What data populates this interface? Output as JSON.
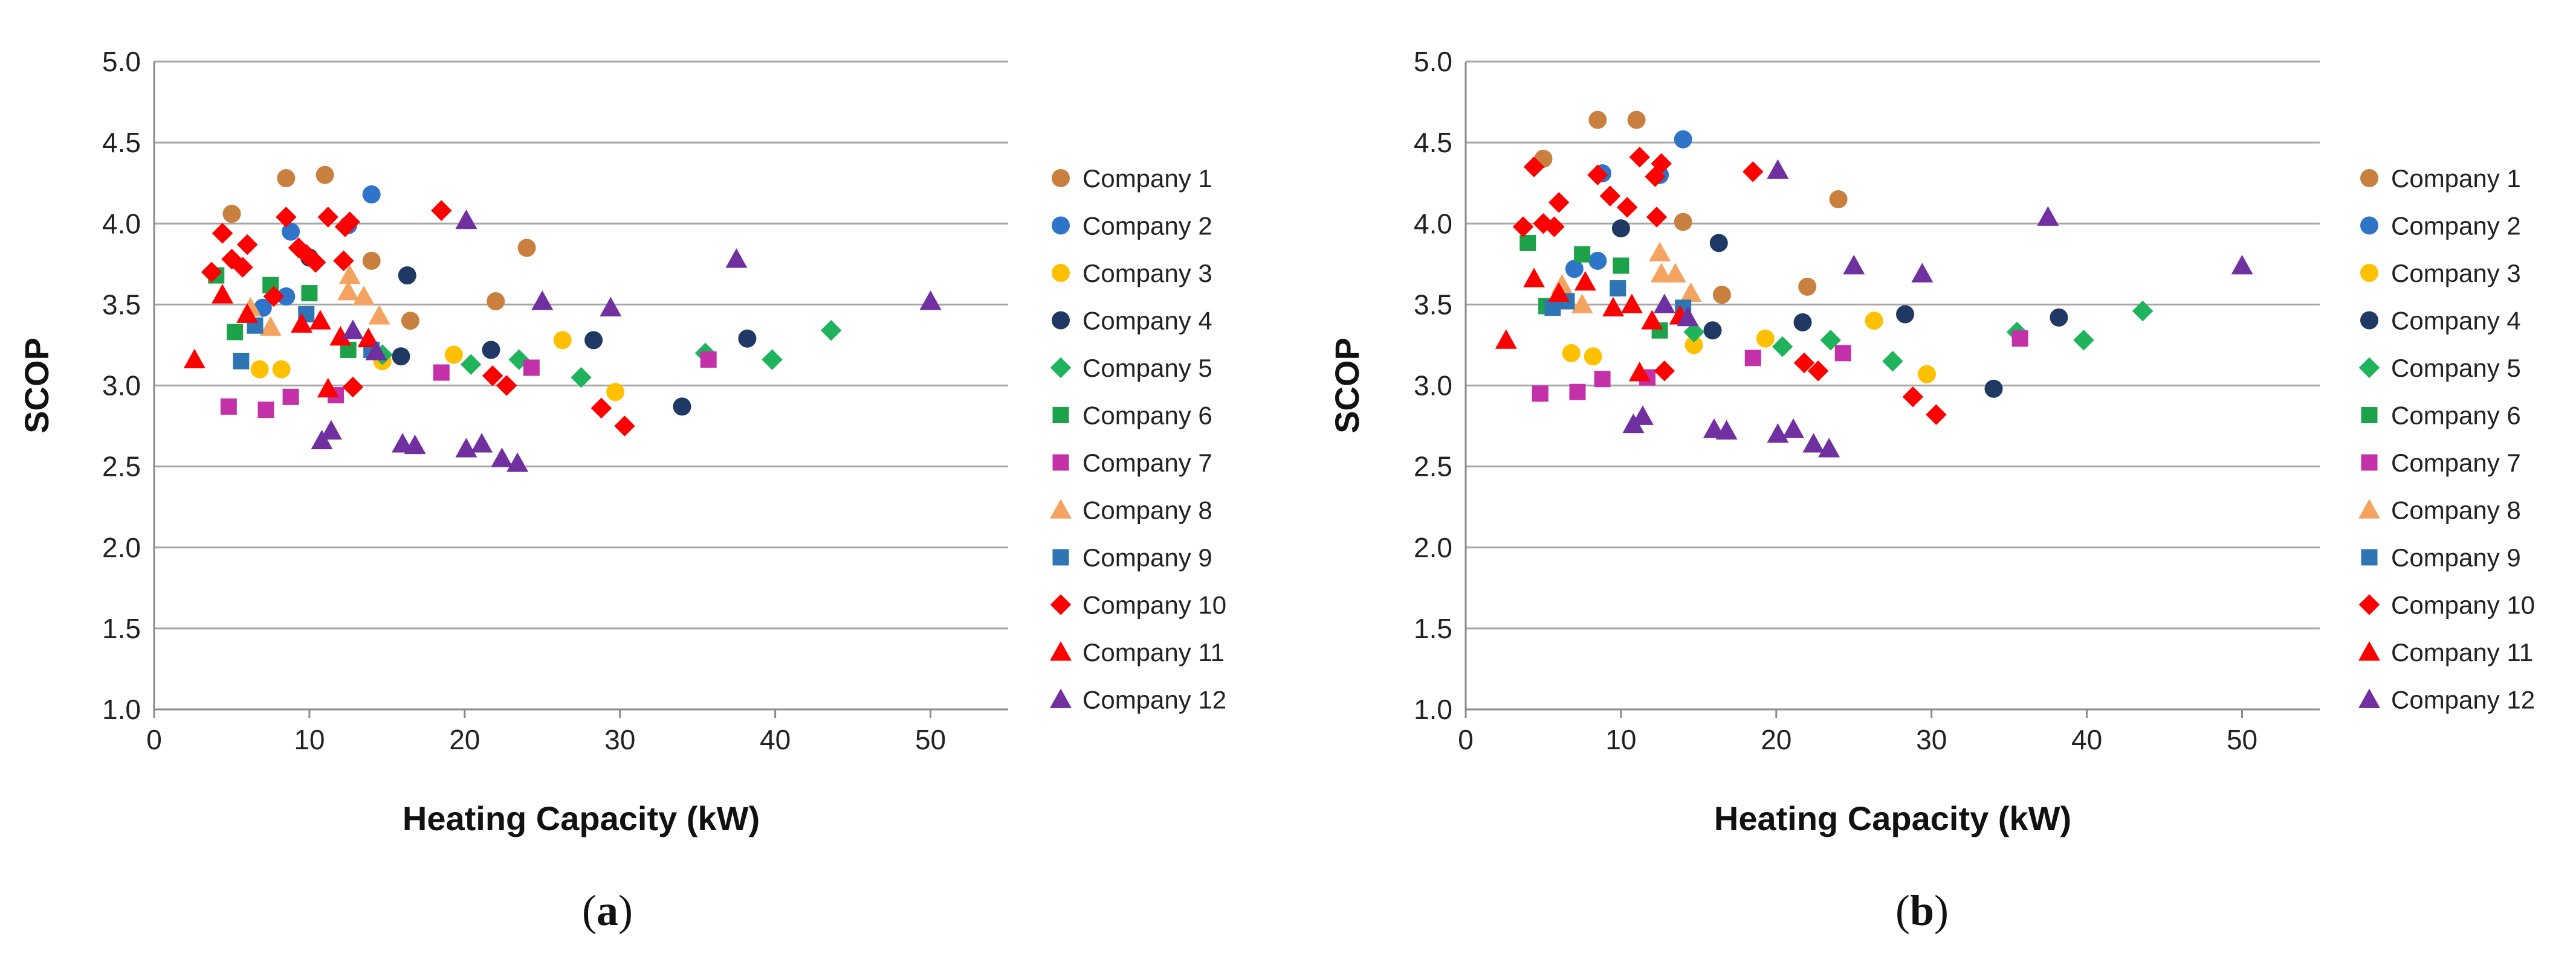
{
  "chart_data": [
    {
      "type": "scatter",
      "panel_label": "a",
      "xlabel": "Heating Capacity (kW)",
      "ylabel": "SCOP",
      "xlim": [
        0,
        55
      ],
      "ylim": [
        1.0,
        5.0
      ],
      "xticks": [
        "0",
        "10",
        "20",
        "30",
        "40",
        "50"
      ],
      "yticks": [
        "1.0",
        "1.5",
        "2.0",
        "2.5",
        "3.0",
        "3.5",
        "4.0",
        "4.5",
        "5.0"
      ],
      "grid": "horizontal",
      "legend_position": "right",
      "series": [
        {
          "name": "Company 1",
          "marker": "circle",
          "color": "#C9803E",
          "points": [
            [
              5.0,
              4.06
            ],
            [
              8.5,
              4.28
            ],
            [
              11.0,
              4.3
            ],
            [
              14.0,
              3.77
            ],
            [
              16.5,
              3.4
            ],
            [
              22.0,
              3.52
            ],
            [
              24.0,
              3.85
            ]
          ]
        },
        {
          "name": "Company 2",
          "marker": "circle",
          "color": "#2E75C9",
          "points": [
            [
              7.0,
              3.48
            ],
            [
              8.5,
              3.55
            ],
            [
              8.8,
              3.95
            ],
            [
              12.5,
              3.99
            ],
            [
              14.0,
              4.18
            ]
          ]
        },
        {
          "name": "Company 3",
          "marker": "circle",
          "color": "#FFC000",
          "points": [
            [
              6.8,
              3.1
            ],
            [
              8.2,
              3.1
            ],
            [
              14.7,
              3.15
            ],
            [
              19.3,
              3.19
            ],
            [
              26.3,
              3.28
            ],
            [
              29.7,
              2.96
            ]
          ]
        },
        {
          "name": "Company 4",
          "marker": "circle",
          "color": "#1F3864",
          "points": [
            [
              10.0,
              3.79
            ],
            [
              15.9,
              3.18
            ],
            [
              16.3,
              3.68
            ],
            [
              21.7,
              3.22
            ],
            [
              28.3,
              3.28
            ],
            [
              34.0,
              2.87
            ],
            [
              38.2,
              3.29
            ]
          ]
        },
        {
          "name": "Company 5",
          "marker": "diamond",
          "color": "#1FB35B",
          "points": [
            [
              14.7,
              3.19
            ],
            [
              20.4,
              3.13
            ],
            [
              23.5,
              3.16
            ],
            [
              27.5,
              3.05
            ],
            [
              35.5,
              3.2
            ],
            [
              39.8,
              3.16
            ],
            [
              43.6,
              3.34
            ]
          ]
        },
        {
          "name": "Company 6",
          "marker": "square",
          "color": "#1CA34A",
          "points": [
            [
              4.0,
              3.68
            ],
            [
              5.2,
              3.33
            ],
            [
              7.5,
              3.62
            ],
            [
              10.0,
              3.57
            ],
            [
              12.5,
              3.22
            ]
          ]
        },
        {
          "name": "Company 7",
          "marker": "square",
          "color": "#C330A8",
          "points": [
            [
              4.8,
              2.87
            ],
            [
              7.2,
              2.85
            ],
            [
              8.8,
              2.93
            ],
            [
              11.7,
              2.94
            ],
            [
              18.5,
              3.08
            ],
            [
              24.3,
              3.11
            ],
            [
              35.7,
              3.16
            ]
          ]
        },
        {
          "name": "Company 8",
          "marker": "triangle",
          "color": "#F4A460",
          "points": [
            [
              6.2,
              3.48
            ],
            [
              7.5,
              3.36
            ],
            [
              12.5,
              3.58
            ],
            [
              12.6,
              3.68
            ],
            [
              13.5,
              3.55
            ],
            [
              14.5,
              3.43
            ]
          ]
        },
        {
          "name": "Company 9",
          "marker": "square",
          "color": "#2E75B6",
          "points": [
            [
              5.6,
              3.15
            ],
            [
              6.5,
              3.37
            ],
            [
              9.8,
              3.44
            ],
            [
              14.0,
              3.22
            ]
          ]
        },
        {
          "name": "Company 10",
          "marker": "diamond",
          "color": "#FF0000",
          "points": [
            [
              3.7,
              3.7
            ],
            [
              4.4,
              3.94
            ],
            [
              5.0,
              3.78
            ],
            [
              5.7,
              3.73
            ],
            [
              6.0,
              3.87
            ],
            [
              7.7,
              3.55
            ],
            [
              8.5,
              4.04
            ],
            [
              9.3,
              3.85
            ],
            [
              9.8,
              3.81
            ],
            [
              10.4,
              3.76
            ],
            [
              11.2,
              4.04
            ],
            [
              12.2,
              3.77
            ],
            [
              12.3,
              3.98
            ],
            [
              12.6,
              4.01
            ],
            [
              12.8,
              2.99
            ],
            [
              18.5,
              4.08
            ],
            [
              21.8,
              3.06
            ],
            [
              22.7,
              3.0
            ],
            [
              28.8,
              2.86
            ],
            [
              30.3,
              2.75
            ]
          ]
        },
        {
          "name": "Company 11",
          "marker": "triangle",
          "color": "#FF0000",
          "points": [
            [
              2.6,
              3.16
            ],
            [
              4.4,
              3.56
            ],
            [
              6.0,
              3.44
            ],
            [
              9.5,
              3.38
            ],
            [
              10.7,
              3.4
            ],
            [
              11.2,
              2.98
            ],
            [
              12.0,
              3.3
            ],
            [
              13.8,
              3.29
            ]
          ]
        },
        {
          "name": "Company 12",
          "marker": "triangle",
          "color": "#7030A0",
          "points": [
            [
              10.8,
              2.66
            ],
            [
              11.4,
              2.72
            ],
            [
              12.8,
              3.34
            ],
            [
              14.3,
              3.21
            ],
            [
              16.0,
              2.64
            ],
            [
              16.8,
              2.63
            ],
            [
              20.1,
              4.02
            ],
            [
              20.1,
              2.61
            ],
            [
              21.1,
              2.64
            ],
            [
              22.4,
              2.55
            ],
            [
              23.4,
              2.52
            ],
            [
              25.0,
              3.52
            ],
            [
              29.4,
              3.48
            ],
            [
              37.5,
              3.78
            ],
            [
              50.0,
              3.52
            ]
          ]
        }
      ]
    },
    {
      "type": "scatter",
      "panel_label": "b",
      "xlabel": "Heating Capacity (kW)",
      "ylabel": "SCOP",
      "xlim": [
        0,
        55
      ],
      "ylim": [
        1.0,
        5.0
      ],
      "xticks": [
        "0",
        "10",
        "20",
        "30",
        "40",
        "50"
      ],
      "yticks": [
        "1.0",
        "1.5",
        "2.0",
        "2.5",
        "3.0",
        "3.5",
        "4.0",
        "4.5",
        "5.0"
      ],
      "grid": "horizontal",
      "legend_position": "right",
      "series": [
        {
          "name": "Company 1",
          "marker": "circle",
          "color": "#C9803E",
          "points": [
            [
              5.0,
              4.4
            ],
            [
              8.5,
              4.64
            ],
            [
              11.0,
              4.64
            ],
            [
              14.0,
              4.01
            ],
            [
              16.5,
              3.56
            ],
            [
              22.0,
              3.61
            ],
            [
              24.0,
              4.15
            ]
          ]
        },
        {
          "name": "Company 2",
          "marker": "circle",
          "color": "#2E75C9",
          "points": [
            [
              7.0,
              3.72
            ],
            [
              8.5,
              3.77
            ],
            [
              8.8,
              4.31
            ],
            [
              12.5,
              4.3
            ],
            [
              14.0,
              4.52
            ]
          ]
        },
        {
          "name": "Company 3",
          "marker": "circle",
          "color": "#FFC000",
          "points": [
            [
              6.8,
              3.2
            ],
            [
              8.2,
              3.18
            ],
            [
              14.7,
              3.25
            ],
            [
              19.3,
              3.29
            ],
            [
              26.3,
              3.4
            ],
            [
              29.7,
              3.07
            ]
          ]
        },
        {
          "name": "Company 4",
          "marker": "circle",
          "color": "#1F3864",
          "points": [
            [
              10.0,
              3.97
            ],
            [
              15.9,
              3.34
            ],
            [
              16.3,
              3.88
            ],
            [
              21.7,
              3.39
            ],
            [
              28.3,
              3.44
            ],
            [
              34.0,
              2.98
            ],
            [
              38.2,
              3.42
            ]
          ]
        },
        {
          "name": "Company 5",
          "marker": "diamond",
          "color": "#1FB35B",
          "points": [
            [
              14.7,
              3.33
            ],
            [
              20.4,
              3.24
            ],
            [
              23.5,
              3.28
            ],
            [
              27.5,
              3.15
            ],
            [
              35.5,
              3.33
            ],
            [
              39.8,
              3.28
            ],
            [
              43.6,
              3.46
            ]
          ]
        },
        {
          "name": "Company 6",
          "marker": "square",
          "color": "#1CA34A",
          "points": [
            [
              4.0,
              3.88
            ],
            [
              5.2,
              3.49
            ],
            [
              7.5,
              3.81
            ],
            [
              10.0,
              3.74
            ],
            [
              12.5,
              3.34
            ]
          ]
        },
        {
          "name": "Company 7",
          "marker": "square",
          "color": "#C330A8",
          "points": [
            [
              4.8,
              2.95
            ],
            [
              7.2,
              2.96
            ],
            [
              8.8,
              3.04
            ],
            [
              11.7,
              3.05
            ],
            [
              18.5,
              3.17
            ],
            [
              24.3,
              3.2
            ],
            [
              35.7,
              3.29
            ]
          ]
        },
        {
          "name": "Company 8",
          "marker": "triangle",
          "color": "#F4A460",
          "points": [
            [
              6.2,
              3.62
            ],
            [
              7.5,
              3.5
            ],
            [
              12.5,
              3.82
            ],
            [
              12.6,
              3.69
            ],
            [
              13.5,
              3.69
            ],
            [
              14.5,
              3.57
            ]
          ]
        },
        {
          "name": "Company 9",
          "marker": "square",
          "color": "#2E75B6",
          "points": [
            [
              5.6,
              3.48
            ],
            [
              6.5,
              3.52
            ],
            [
              9.8,
              3.6
            ],
            [
              14.0,
              3.48
            ]
          ]
        },
        {
          "name": "Company 10",
          "marker": "diamond",
          "color": "#FF0000",
          "points": [
            [
              3.7,
              3.98
            ],
            [
              4.4,
              4.35
            ],
            [
              5.0,
              4.0
            ],
            [
              5.7,
              3.98
            ],
            [
              6.0,
              4.13
            ],
            [
              8.5,
              4.3
            ],
            [
              9.3,
              4.17
            ],
            [
              10.4,
              4.1
            ],
            [
              11.2,
              4.41
            ],
            [
              12.2,
              4.29
            ],
            [
              12.3,
              4.04
            ],
            [
              12.6,
              4.37
            ],
            [
              12.8,
              3.09
            ],
            [
              18.5,
              4.32
            ],
            [
              21.8,
              3.14
            ],
            [
              22.7,
              3.09
            ],
            [
              28.8,
              2.93
            ],
            [
              30.3,
              2.82
            ]
          ]
        },
        {
          "name": "Company 11",
          "marker": "triangle",
          "color": "#FF0000",
          "points": [
            [
              2.6,
              3.28
            ],
            [
              4.4,
              3.66
            ],
            [
              6.0,
              3.57
            ],
            [
              7.7,
              3.64
            ],
            [
              9.5,
              3.48
            ],
            [
              10.7,
              3.5
            ],
            [
              11.2,
              3.08
            ],
            [
              12.0,
              3.4
            ],
            [
              13.8,
              3.43
            ]
          ]
        },
        {
          "name": "Company 12",
          "marker": "triangle",
          "color": "#7030A0",
          "points": [
            [
              10.8,
              2.76
            ],
            [
              11.4,
              2.81
            ],
            [
              12.8,
              3.5
            ],
            [
              14.3,
              3.42
            ],
            [
              16.0,
              2.73
            ],
            [
              16.8,
              2.72
            ],
            [
              20.1,
              4.33
            ],
            [
              20.1,
              2.7
            ],
            [
              21.1,
              2.73
            ],
            [
              22.4,
              2.64
            ],
            [
              23.4,
              2.61
            ],
            [
              25.0,
              3.74
            ],
            [
              29.4,
              3.69
            ],
            [
              37.5,
              4.04
            ],
            [
              50.0,
              3.74
            ]
          ]
        }
      ]
    }
  ]
}
